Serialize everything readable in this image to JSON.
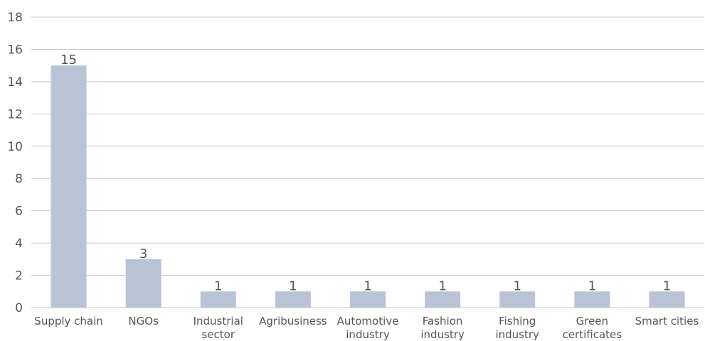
{
  "chart_data": {
    "type": "bar",
    "title": "",
    "xlabel": "",
    "ylabel": "",
    "ylim": [
      0,
      18
    ],
    "yticks": [
      0,
      2,
      4,
      6,
      8,
      10,
      12,
      14,
      16,
      18
    ],
    "grid": true,
    "legend": "none",
    "bar_color": "#b8c4d6",
    "grid_color": "#c8c8c8",
    "categories": [
      [
        "Supply chain"
      ],
      [
        "NGOs"
      ],
      [
        "Industrial",
        "sector"
      ],
      [
        "Agribusiness"
      ],
      [
        "Automotive",
        "industry"
      ],
      [
        "Fashion",
        "industry"
      ],
      [
        "Fishing",
        "industry"
      ],
      [
        "Green",
        "certificates"
      ],
      [
        "Smart cities"
      ]
    ],
    "values": [
      15,
      3,
      1,
      1,
      1,
      1,
      1,
      1,
      1
    ],
    "data_labels": [
      "15",
      "3",
      "1",
      "1",
      "1",
      "1",
      "1",
      "1",
      "1"
    ]
  }
}
